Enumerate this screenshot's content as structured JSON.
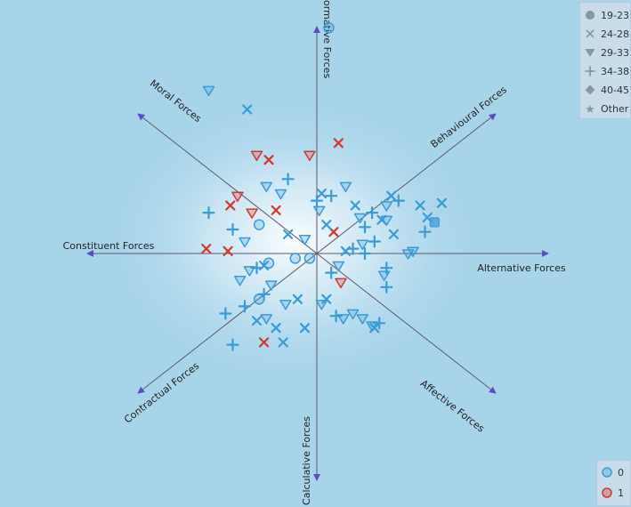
{
  "chart_data": {
    "type": "scatter",
    "axes": [
      {
        "name": "Normative Forces",
        "angle": 90
      },
      {
        "name": "Behavioural Forces",
        "angle": 38
      },
      {
        "name": "Alternative Forces",
        "angle": 0
      },
      {
        "name": "Affective Forces",
        "angle": -38
      },
      {
        "name": "Calculative Forces",
        "angle": -90
      },
      {
        "name": "Contractual Forces",
        "angle": -142
      },
      {
        "name": "Constituent Forces",
        "angle": 180
      },
      {
        "name": "Moral Forces",
        "angle": 142
      }
    ],
    "shape_legend": [
      {
        "label": "19-23",
        "shape": "circle"
      },
      {
        "label": "24-28",
        "shape": "x"
      },
      {
        "label": "29-33",
        "shape": "triangle"
      },
      {
        "label": "34-38",
        "shape": "plus"
      },
      {
        "label": "40-45",
        "shape": "diamond"
      },
      {
        "label": "Other",
        "shape": "star"
      }
    ],
    "color_legend": [
      {
        "label": "0",
        "color": "#3a9bd5"
      },
      {
        "label": "1",
        "color": "#d0392b"
      }
    ],
    "points": [
      {
        "x": 0.05,
        "y": 0.94,
        "shape": "circle",
        "group": "0"
      },
      {
        "x": -0.45,
        "y": 0.68,
        "shape": "triangle",
        "group": "0"
      },
      {
        "x": -0.29,
        "y": 0.6,
        "shape": "x",
        "group": "0"
      },
      {
        "x": 0.09,
        "y": 0.46,
        "shape": "x",
        "group": "1"
      },
      {
        "x": -0.03,
        "y": 0.41,
        "shape": "triangle",
        "group": "1"
      },
      {
        "x": -0.25,
        "y": 0.41,
        "shape": "triangle",
        "group": "1"
      },
      {
        "x": -0.2,
        "y": 0.39,
        "shape": "x",
        "group": "1"
      },
      {
        "x": -0.12,
        "y": 0.31,
        "shape": "plus",
        "group": "0"
      },
      {
        "x": -0.33,
        "y": 0.24,
        "shape": "triangle",
        "group": "1"
      },
      {
        "x": -0.36,
        "y": 0.2,
        "shape": "x",
        "group": "1"
      },
      {
        "x": -0.27,
        "y": 0.17,
        "shape": "triangle",
        "group": "1"
      },
      {
        "x": -0.17,
        "y": 0.18,
        "shape": "x",
        "group": "1"
      },
      {
        "x": -0.45,
        "y": 0.17,
        "shape": "plus",
        "group": "0"
      },
      {
        "x": -0.21,
        "y": 0.28,
        "shape": "triangle",
        "group": "0"
      },
      {
        "x": -0.15,
        "y": 0.25,
        "shape": "triangle",
        "group": "0"
      },
      {
        "x": -0.24,
        "y": 0.12,
        "shape": "circle",
        "group": "0"
      },
      {
        "x": -0.35,
        "y": 0.1,
        "shape": "plus",
        "group": "0"
      },
      {
        "x": -0.37,
        "y": 0.01,
        "shape": "x",
        "group": "1"
      },
      {
        "x": -0.46,
        "y": 0.02,
        "shape": "x",
        "group": "1"
      },
      {
        "x": -0.3,
        "y": 0.05,
        "shape": "triangle",
        "group": "0"
      },
      {
        "x": -0.12,
        "y": 0.08,
        "shape": "x",
        "group": "0"
      },
      {
        "x": -0.05,
        "y": 0.06,
        "shape": "triangle",
        "group": "0"
      },
      {
        "x": -0.03,
        "y": -0.02,
        "shape": "circle",
        "group": "0"
      },
      {
        "x": -0.09,
        "y": -0.02,
        "shape": "circle",
        "group": "0"
      },
      {
        "x": -0.2,
        "y": -0.04,
        "shape": "circle",
        "group": "0"
      },
      {
        "x": -0.22,
        "y": -0.05,
        "shape": "x",
        "group": "0"
      },
      {
        "x": -0.25,
        "y": -0.06,
        "shape": "plus",
        "group": "0"
      },
      {
        "x": -0.28,
        "y": -0.07,
        "shape": "triangle",
        "group": "0"
      },
      {
        "x": -0.32,
        "y": -0.11,
        "shape": "triangle",
        "group": "0"
      },
      {
        "x": -0.19,
        "y": -0.13,
        "shape": "triangle",
        "group": "0"
      },
      {
        "x": -0.22,
        "y": -0.17,
        "shape": "plus",
        "group": "0"
      },
      {
        "x": -0.24,
        "y": -0.19,
        "shape": "circle",
        "group": "0"
      },
      {
        "x": -0.3,
        "y": -0.22,
        "shape": "plus",
        "group": "0"
      },
      {
        "x": -0.13,
        "y": -0.21,
        "shape": "triangle",
        "group": "0"
      },
      {
        "x": -0.08,
        "y": -0.19,
        "shape": "x",
        "group": "0"
      },
      {
        "x": -0.21,
        "y": -0.27,
        "shape": "triangle",
        "group": "0"
      },
      {
        "x": -0.25,
        "y": -0.28,
        "shape": "x",
        "group": "0"
      },
      {
        "x": -0.35,
        "y": -0.38,
        "shape": "plus",
        "group": "0"
      },
      {
        "x": -0.17,
        "y": -0.31,
        "shape": "x",
        "group": "0"
      },
      {
        "x": -0.05,
        "y": -0.31,
        "shape": "x",
        "group": "0"
      },
      {
        "x": -0.22,
        "y": -0.37,
        "shape": "x",
        "group": "1"
      },
      {
        "x": -0.14,
        "y": -0.37,
        "shape": "x",
        "group": "0"
      },
      {
        "x": 0.02,
        "y": -0.21,
        "shape": "triangle",
        "group": "0"
      },
      {
        "x": 0.04,
        "y": -0.19,
        "shape": "x",
        "group": "0"
      },
      {
        "x": 0.08,
        "y": -0.26,
        "shape": "plus",
        "group": "0"
      },
      {
        "x": 0.11,
        "y": -0.27,
        "shape": "triangle",
        "group": "0"
      },
      {
        "x": 0.15,
        "y": -0.25,
        "shape": "triangle",
        "group": "0"
      },
      {
        "x": 0.19,
        "y": -0.27,
        "shape": "triangle",
        "group": "0"
      },
      {
        "x": 0.23,
        "y": -0.3,
        "shape": "triangle",
        "group": "0"
      },
      {
        "x": 0.26,
        "y": -0.29,
        "shape": "plus",
        "group": "0"
      },
      {
        "x": 0.24,
        "y": -0.31,
        "shape": "x",
        "group": "0"
      },
      {
        "x": 0.1,
        "y": -0.12,
        "shape": "triangle",
        "group": "1"
      },
      {
        "x": 0.06,
        "y": -0.08,
        "shape": "plus",
        "group": "0"
      },
      {
        "x": 0.09,
        "y": -0.05,
        "shape": "triangle",
        "group": "0"
      },
      {
        "x": 0.12,
        "y": 0.01,
        "shape": "x",
        "group": "0"
      },
      {
        "x": 0.15,
        "y": 0.02,
        "shape": "plus",
        "group": "0"
      },
      {
        "x": 0.19,
        "y": 0.04,
        "shape": "triangle",
        "group": "0"
      },
      {
        "x": 0.2,
        "y": 0.0,
        "shape": "plus",
        "group": "0"
      },
      {
        "x": 0.24,
        "y": 0.05,
        "shape": "plus",
        "group": "0"
      },
      {
        "x": 0.29,
        "y": -0.06,
        "shape": "plus",
        "group": "0"
      },
      {
        "x": 0.28,
        "y": -0.09,
        "shape": "triangle",
        "group": "0"
      },
      {
        "x": 0.38,
        "y": 0.0,
        "shape": "triangle",
        "group": "0"
      },
      {
        "x": 0.4,
        "y": 0.01,
        "shape": "triangle",
        "group": "0"
      },
      {
        "x": 0.29,
        "y": -0.14,
        "shape": "plus",
        "group": "0"
      },
      {
        "x": 0.07,
        "y": 0.09,
        "shape": "x",
        "group": "1"
      },
      {
        "x": 0.04,
        "y": 0.12,
        "shape": "x",
        "group": "0"
      },
      {
        "x": 0.01,
        "y": 0.18,
        "shape": "triangle",
        "group": "0"
      },
      {
        "x": 0.0,
        "y": 0.22,
        "shape": "plus",
        "group": "0"
      },
      {
        "x": 0.02,
        "y": 0.25,
        "shape": "x",
        "group": "0"
      },
      {
        "x": 0.06,
        "y": 0.24,
        "shape": "plus",
        "group": "0"
      },
      {
        "x": 0.12,
        "y": 0.28,
        "shape": "triangle",
        "group": "0"
      },
      {
        "x": 0.16,
        "y": 0.2,
        "shape": "x",
        "group": "0"
      },
      {
        "x": 0.18,
        "y": 0.15,
        "shape": "triangle",
        "group": "0"
      },
      {
        "x": 0.2,
        "y": 0.11,
        "shape": "plus",
        "group": "0"
      },
      {
        "x": 0.23,
        "y": 0.17,
        "shape": "plus",
        "group": "0"
      },
      {
        "x": 0.27,
        "y": 0.14,
        "shape": "x",
        "group": "0"
      },
      {
        "x": 0.29,
        "y": 0.2,
        "shape": "triangle",
        "group": "0"
      },
      {
        "x": 0.29,
        "y": 0.14,
        "shape": "triangle",
        "group": "0"
      },
      {
        "x": 0.31,
        "y": 0.24,
        "shape": "x",
        "group": "0"
      },
      {
        "x": 0.34,
        "y": 0.22,
        "shape": "plus",
        "group": "0"
      },
      {
        "x": 0.32,
        "y": 0.08,
        "shape": "x",
        "group": "0"
      },
      {
        "x": 0.43,
        "y": 0.2,
        "shape": "x",
        "group": "0"
      },
      {
        "x": 0.46,
        "y": 0.15,
        "shape": "x",
        "group": "0"
      },
      {
        "x": 0.45,
        "y": 0.09,
        "shape": "plus",
        "group": "0"
      },
      {
        "x": 0.49,
        "y": 0.13,
        "shape": "square",
        "group": "0"
      },
      {
        "x": 0.52,
        "y": 0.21,
        "shape": "x",
        "group": "0"
      },
      {
        "x": -0.38,
        "y": -0.25,
        "shape": "plus",
        "group": "0"
      }
    ]
  }
}
